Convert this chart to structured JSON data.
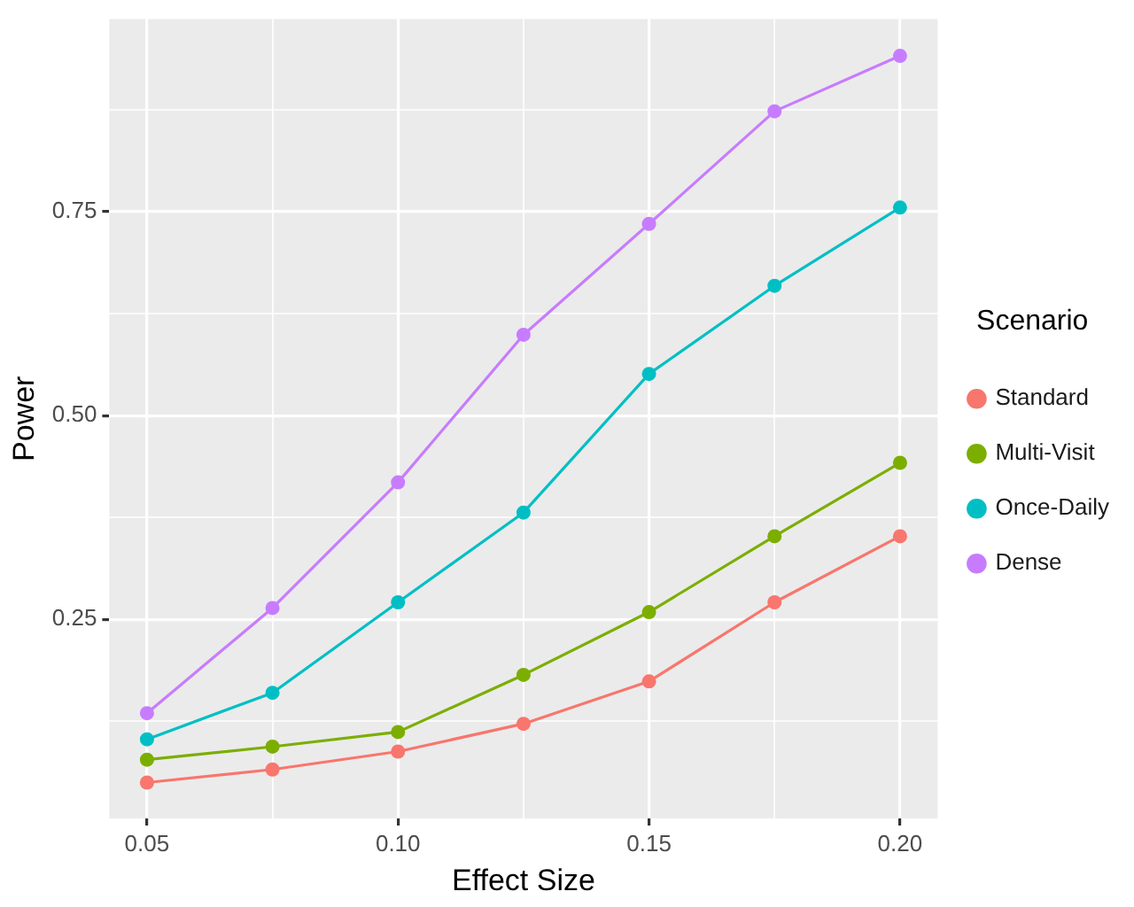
{
  "chart_data": {
    "type": "line",
    "xlabel": "Effect Size",
    "ylabel": "Power",
    "legend_title": "Scenario",
    "legend": "right",
    "marker": "circle",
    "line_style": "solid",
    "grid": true,
    "x": [
      0.05,
      0.075,
      0.1,
      0.125,
      0.15,
      0.175,
      0.2
    ],
    "xlim": [
      0.0425,
      0.2075
    ],
    "ylim": [
      0.006,
      0.986
    ],
    "xticks": [
      {
        "value": 0.05,
        "label": "0.05"
      },
      {
        "value": 0.075,
        "label": null
      },
      {
        "value": 0.1,
        "label": "0.10"
      },
      {
        "value": 0.125,
        "label": null
      },
      {
        "value": 0.15,
        "label": "0.15"
      },
      {
        "value": 0.175,
        "label": null
      },
      {
        "value": 0.2,
        "label": "0.20"
      }
    ],
    "yticks": [
      {
        "value": 0.125,
        "label": null
      },
      {
        "value": 0.25,
        "label": "0.25"
      },
      {
        "value": 0.375,
        "label": null
      },
      {
        "value": 0.5,
        "label": "0.50"
      },
      {
        "value": 0.625,
        "label": null
      },
      {
        "value": 0.75,
        "label": "0.75"
      },
      {
        "value": 0.875,
        "label": null
      }
    ],
    "series": [
      {
        "name": "Standard",
        "color": "#f8766d",
        "values": [
          0.05,
          0.066,
          0.088,
          0.122,
          0.174,
          0.271,
          0.352
        ]
      },
      {
        "name": "Multi-Visit",
        "color": "#7cae00",
        "values": [
          0.078,
          0.094,
          0.112,
          0.182,
          0.259,
          0.352,
          0.442
        ]
      },
      {
        "name": "Once-Daily",
        "color": "#00bfc4",
        "values": [
          0.103,
          0.16,
          0.271,
          0.381,
          0.551,
          0.659,
          0.755
        ]
      },
      {
        "name": "Dense",
        "color": "#c77cff",
        "values": [
          0.135,
          0.264,
          0.418,
          0.599,
          0.735,
          0.873,
          0.941
        ]
      }
    ]
  }
}
